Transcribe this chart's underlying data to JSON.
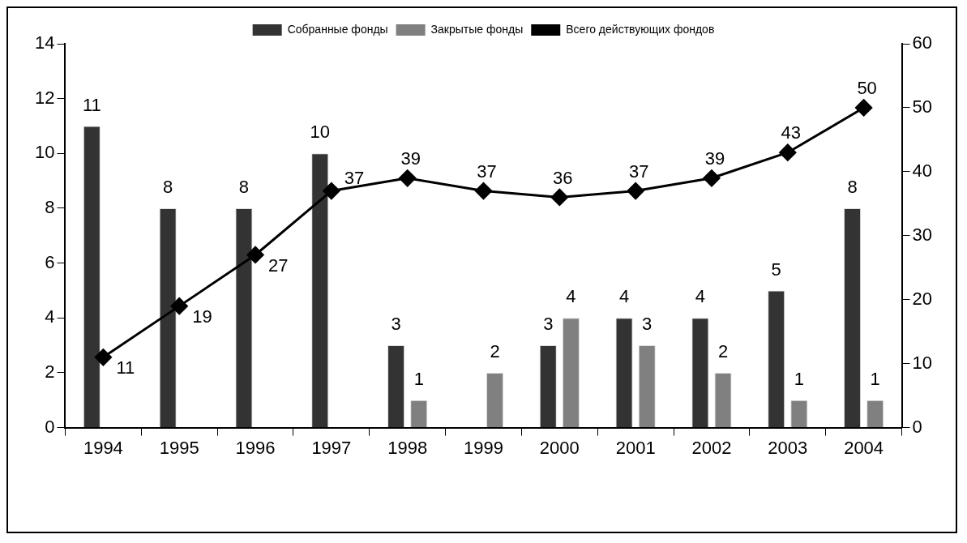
{
  "chart_data": {
    "type": "bar",
    "categories": [
      "1994",
      "1995",
      "1996",
      "1997",
      "1998",
      "1999",
      "2000",
      "2001",
      "2002",
      "2003",
      "2004"
    ],
    "series": [
      {
        "name": "Собранные фонды",
        "color": "#333333",
        "values": [
          11,
          8,
          8,
          10,
          3,
          null,
          3,
          4,
          4,
          5,
          8
        ]
      },
      {
        "name": "Закрытые фонды",
        "color": "#808080",
        "values": [
          null,
          null,
          null,
          null,
          1,
          2,
          4,
          3,
          2,
          1,
          1
        ]
      },
      {
        "name": "Всего действующих фондов",
        "type": "line",
        "axis": "y2",
        "color": "#000000",
        "values": [
          11,
          19,
          27,
          37,
          39,
          37,
          36,
          37,
          39,
          43,
          50
        ]
      }
    ],
    "ylim": [
      0,
      14
    ],
    "yticks": [
      0,
      2,
      4,
      6,
      8,
      10,
      12,
      14
    ],
    "y2lim": [
      0,
      60
    ],
    "y2ticks": [
      0,
      10,
      20,
      30,
      40,
      50,
      60
    ],
    "grid": false,
    "legend": "top",
    "marker": "diamond",
    "line_style": "solid",
    "data_labels": true
  }
}
